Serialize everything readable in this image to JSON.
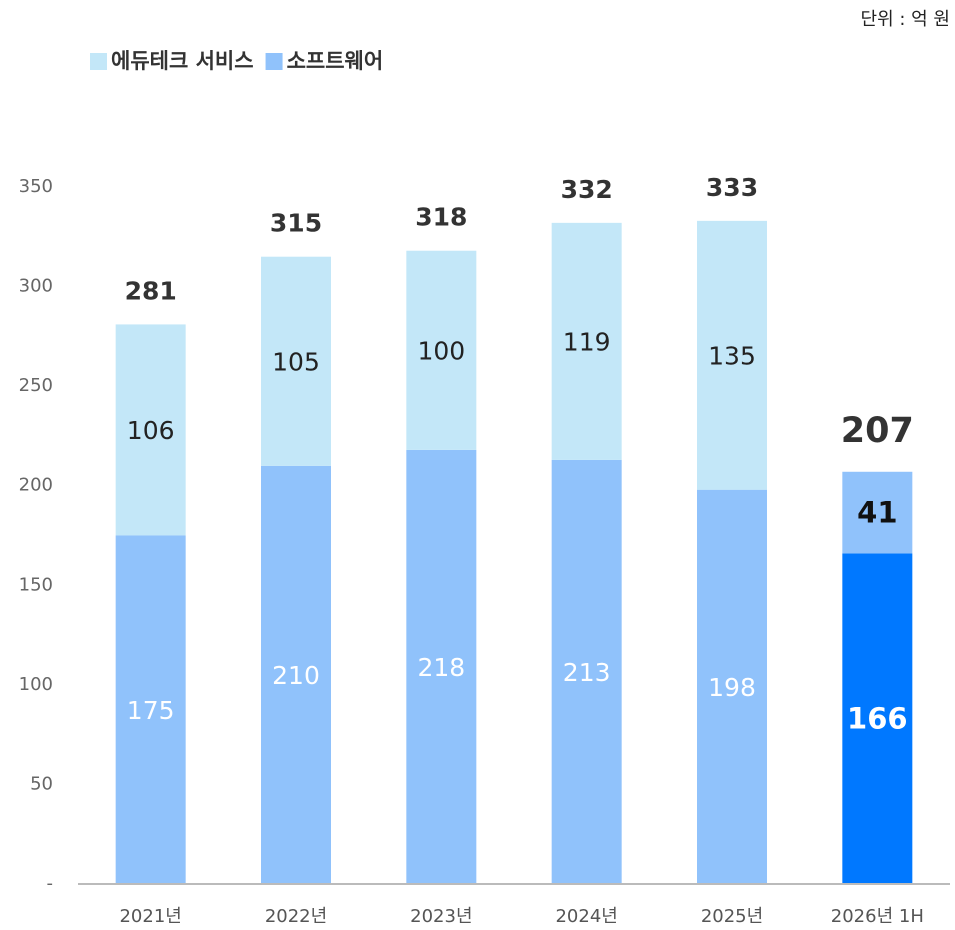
{
  "chart_data": {
    "type": "stacked_bar",
    "unit_note": "단위 : 억 원",
    "categories": [
      "2021년",
      "2022년",
      "2023년",
      "2024년",
      "2025년",
      "2026년 1H"
    ],
    "series": [
      {
        "name": "소프트웨어",
        "color": "#90c2fb",
        "colors": [
          "#90c2fb",
          "#90c2fb",
          "#90c2fb",
          "#90c2fb",
          "#90c2fb",
          "#0078ff"
        ],
        "values": [
          175,
          210,
          218,
          213,
          198,
          166
        ]
      },
      {
        "name": "에듀테크 서비스",
        "color": "#c3e7f8",
        "colors": [
          "#c3e7f8",
          "#c3e7f8",
          "#c3e7f8",
          "#c3e7f8",
          "#c3e7f8",
          "#90c2fb"
        ],
        "values": [
          106,
          105,
          100,
          119,
          135,
          41
        ]
      }
    ],
    "totals": [
      281,
      315,
      318,
      332,
      333,
      207
    ],
    "ylim": [
      0,
      350
    ],
    "yticks": [
      {
        "value": 0,
        "label": "-"
      },
      50,
      100,
      150,
      200,
      250,
      300,
      350
    ],
    "legend": "top-left"
  }
}
